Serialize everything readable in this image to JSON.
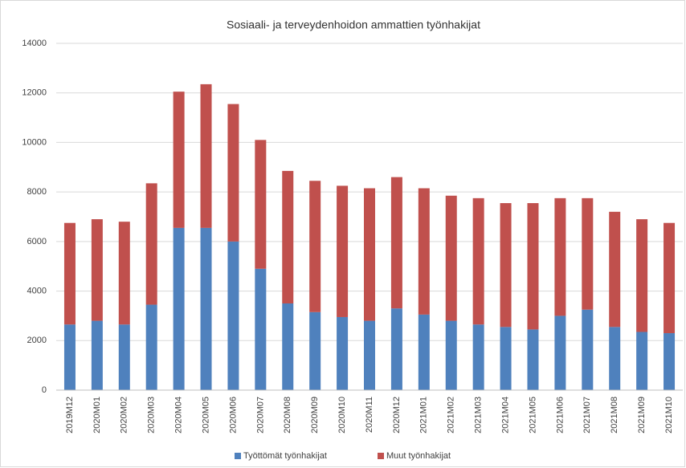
{
  "chart_data": {
    "type": "stacked_bar",
    "title": "Sosiaali- ja terveydenhoidon ammattien työnhakijat",
    "categories": [
      "2019M12",
      "2020M01",
      "2020M02",
      "2020M03",
      "2020M04",
      "2020M05",
      "2020M06",
      "2020M07",
      "2020M08",
      "2020M09",
      "2020M10",
      "2020M11",
      "2020M12",
      "2021M01",
      "2021M02",
      "2021M03",
      "2021M04",
      "2021M05",
      "2021M06",
      "2021M07",
      "2021M08",
      "2021M09",
      "2021M10"
    ],
    "series": [
      {
        "name": "Työttömät työnhakijat",
        "color": "#4f81bd",
        "values": [
          2650,
          2800,
          2650,
          3450,
          6550,
          6550,
          6000,
          4900,
          3500,
          3150,
          2950,
          2800,
          3300,
          3050,
          2800,
          2650,
          2550,
          2450,
          3000,
          3250,
          2550,
          2350,
          2300
        ]
      },
      {
        "name": "Muut työnhakijat",
        "color": "#c0504d",
        "values": [
          4100,
          4100,
          4150,
          4900,
          5500,
          5800,
          5550,
          5200,
          5350,
          5300,
          5300,
          5350,
          5300,
          5100,
          5050,
          5100,
          5000,
          5100,
          4750,
          4500,
          4650,
          4550,
          4450
        ]
      }
    ],
    "ylim": [
      0,
      14000
    ],
    "yticks": [
      0,
      2000,
      4000,
      6000,
      8000,
      10000,
      12000,
      14000
    ],
    "grid": true,
    "legend": "bottom"
  }
}
